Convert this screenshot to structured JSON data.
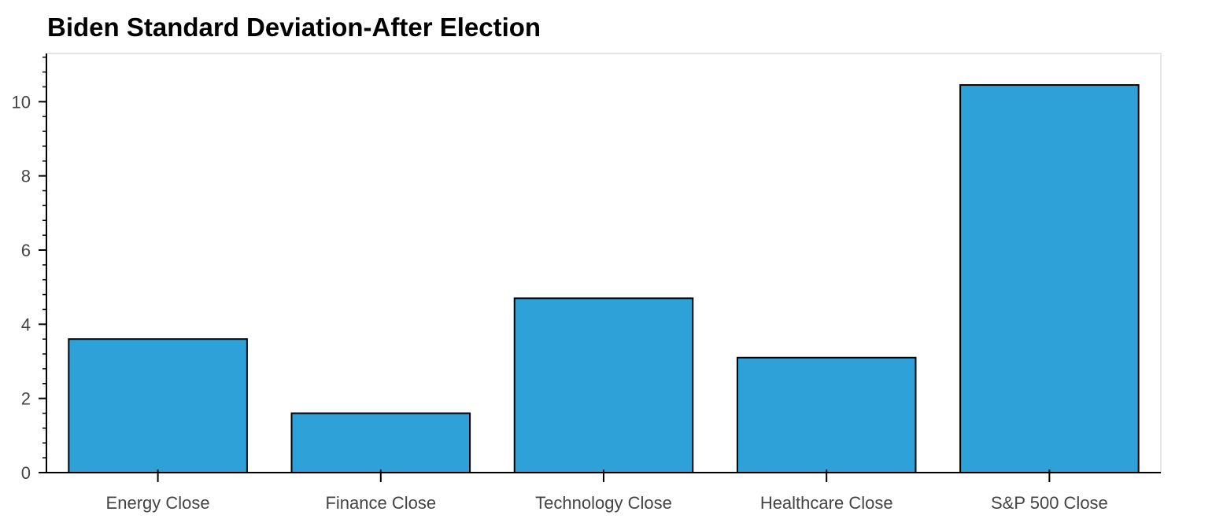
{
  "chart_data": {
    "type": "bar",
    "title": "Biden Standard Deviation-After Election",
    "xlabel": "",
    "ylabel": "",
    "categories": [
      "Energy Close",
      "Finance Close",
      "Technology Close",
      "Healthcare Close",
      "S&P 500 Close"
    ],
    "values": [
      3.6,
      1.6,
      4.7,
      3.1,
      10.45
    ],
    "ylim": [
      0,
      11.3
    ],
    "yticks": [
      0,
      2,
      4,
      6,
      8,
      10
    ],
    "grid": false,
    "legend": "none",
    "bar_color": "#2ea1d8",
    "bar_edge_color": "#000000"
  }
}
